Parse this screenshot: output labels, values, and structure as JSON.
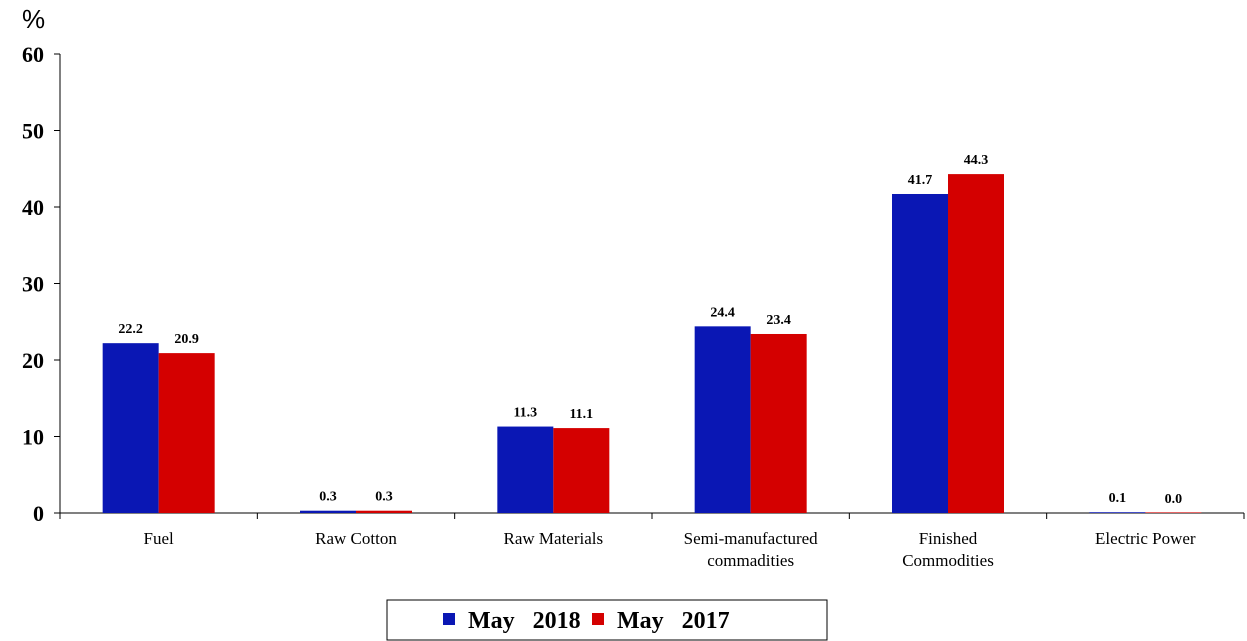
{
  "chart_data": {
    "type": "bar",
    "unit_label": "%",
    "categories": [
      [
        "Fuel"
      ],
      [
        "Raw Cotton"
      ],
      [
        "Raw Materials"
      ],
      [
        "Semi-manufactured",
        "commadities"
      ],
      [
        "Finished",
        "Commodities"
      ],
      [
        "Electric Power"
      ]
    ],
    "series": [
      {
        "name": "May   2018",
        "color": "#0a17b4",
        "values": [
          22.2,
          0.3,
          11.3,
          24.4,
          41.7,
          0.1
        ]
      },
      {
        "name": "May   2017",
        "color": "#d40000",
        "values": [
          20.9,
          0.3,
          11.1,
          23.4,
          44.3,
          0.0
        ]
      }
    ],
    "ylim": [
      0,
      60
    ],
    "yticks": [
      0,
      10,
      20,
      30,
      40,
      50,
      60
    ],
    "data_label_decimals": 1,
    "legend_position": "bottom-center",
    "grid": false
  }
}
